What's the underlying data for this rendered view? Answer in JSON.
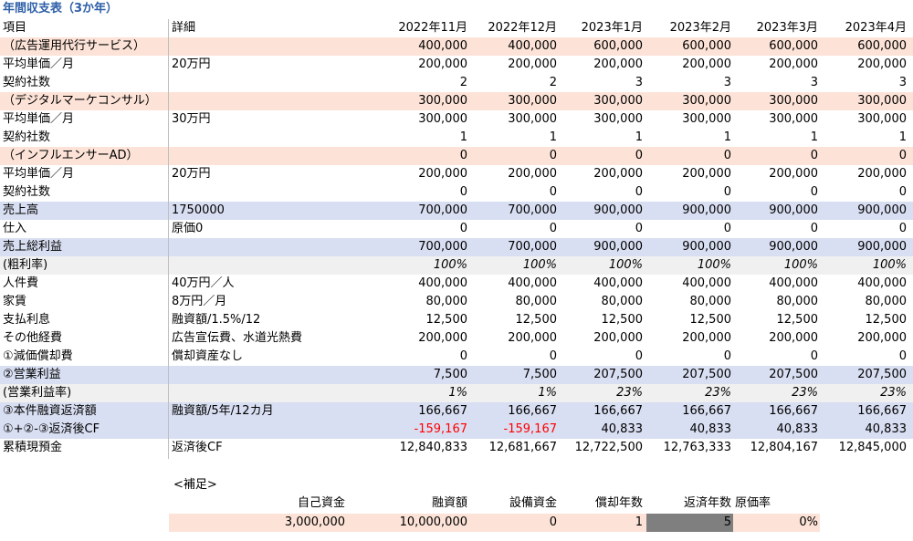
{
  "title": "年間収支表（3か年）",
  "header": {
    "label": "項目",
    "detail": "詳細",
    "months": [
      "2022年11月",
      "2022年12月",
      "2023年1月",
      "2023年2月",
      "2023年3月",
      "2023年4月"
    ]
  },
  "rows": [
    {
      "label": "（広告運用代行サービス）",
      "detail": "",
      "values": [
        "400,000",
        "400,000",
        "600,000",
        "600,000",
        "600,000",
        "600,000"
      ],
      "style": "pink"
    },
    {
      "label": "平均単価／月",
      "detail": "20万円",
      "values": [
        "200,000",
        "200,000",
        "200,000",
        "200,000",
        "200,000",
        "200,000"
      ],
      "style": ""
    },
    {
      "label": "契約社数",
      "detail": "",
      "values": [
        "2",
        "2",
        "3",
        "3",
        "3",
        "3"
      ],
      "style": ""
    },
    {
      "label": "（デジタルマーケコンサル）",
      "detail": "",
      "values": [
        "300,000",
        "300,000",
        "300,000",
        "300,000",
        "300,000",
        "300,000"
      ],
      "style": "pink"
    },
    {
      "label": "平均単価／月",
      "detail": "30万円",
      "values": [
        "300,000",
        "300,000",
        "300,000",
        "300,000",
        "300,000",
        "300,000"
      ],
      "style": ""
    },
    {
      "label": "契約社数",
      "detail": "",
      "values": [
        "1",
        "1",
        "1",
        "1",
        "1",
        "1"
      ],
      "style": ""
    },
    {
      "label": "（インフルエンサーAD）",
      "detail": "",
      "values": [
        "0",
        "0",
        "0",
        "0",
        "0",
        "0"
      ],
      "style": "pink"
    },
    {
      "label": "平均単価／月",
      "detail": "20万円",
      "values": [
        "200,000",
        "200,000",
        "200,000",
        "200,000",
        "200,000",
        "200,000"
      ],
      "style": ""
    },
    {
      "label": "契約社数",
      "detail": "",
      "values": [
        "0",
        "0",
        "0",
        "0",
        "0",
        "0"
      ],
      "style": ""
    },
    {
      "label": "売上高",
      "detail": "1750000",
      "values": [
        "700,000",
        "700,000",
        "900,000",
        "900,000",
        "900,000",
        "900,000"
      ],
      "style": "blue"
    },
    {
      "label": "仕入",
      "detail": "原価0",
      "values": [
        "0",
        "0",
        "0",
        "0",
        "0",
        "0"
      ],
      "style": ""
    },
    {
      "label": "売上総利益",
      "detail": "",
      "values": [
        "700,000",
        "700,000",
        "900,000",
        "900,000",
        "900,000",
        "900,000"
      ],
      "style": "blue"
    },
    {
      "label": "(粗利率)",
      "detail": "",
      "values": [
        "100%",
        "100%",
        "100%",
        "100%",
        "100%",
        "100%"
      ],
      "style": "gray",
      "italic": true
    },
    {
      "label": "人件費",
      "detail": "40万円／人",
      "values": [
        "400,000",
        "400,000",
        "400,000",
        "400,000",
        "400,000",
        "400,000"
      ],
      "style": ""
    },
    {
      "label": "家賃",
      "detail": "8万円／月",
      "values": [
        "80,000",
        "80,000",
        "80,000",
        "80,000",
        "80,000",
        "80,000"
      ],
      "style": ""
    },
    {
      "label": "支払利息",
      "detail": "融資額/1.5%/12",
      "values": [
        "12,500",
        "12,500",
        "12,500",
        "12,500",
        "12,500",
        "12,500"
      ],
      "style": ""
    },
    {
      "label": "その他経費",
      "detail": "広告宣伝費、水道光熱費",
      "values": [
        "200,000",
        "200,000",
        "200,000",
        "200,000",
        "200,000",
        "200,000"
      ],
      "style": ""
    },
    {
      "label": "①減価償却費",
      "detail": "償却資産なし",
      "values": [
        "0",
        "0",
        "0",
        "0",
        "0",
        "0"
      ],
      "style": ""
    },
    {
      "label": "②営業利益",
      "detail": "",
      "values": [
        "7,500",
        "7,500",
        "207,500",
        "207,500",
        "207,500",
        "207,500"
      ],
      "style": "blue"
    },
    {
      "label": "(営業利益率)",
      "detail": "",
      "values": [
        "1%",
        "1%",
        "23%",
        "23%",
        "23%",
        "23%"
      ],
      "style": "gray",
      "italic": true
    },
    {
      "label": "③本件融資返済額",
      "detail": "融資額/5年/12カ月",
      "values": [
        "166,667",
        "166,667",
        "166,667",
        "166,667",
        "166,667",
        "166,667"
      ],
      "style": "blue"
    },
    {
      "label": "①+②-③返済後CF",
      "detail": "",
      "values": [
        "-159,167",
        "-159,167",
        "40,833",
        "40,833",
        "40,833",
        "40,833"
      ],
      "style": "blue",
      "negcols": [
        0,
        1
      ]
    },
    {
      "label": "累積現預金",
      "detail": "返済後CF",
      "values": [
        "12,840,833",
        "12,681,667",
        "12,722,500",
        "12,763,333",
        "12,804,167",
        "12,845,000"
      ],
      "style": ""
    }
  ],
  "supplement": {
    "label": "<補足>",
    "headers": [
      "自己資金",
      "融資額",
      "設備資金",
      "償却年数",
      "返済年数",
      "原価率"
    ],
    "values": [
      "3,000,000",
      "10,000,000",
      "0",
      "1",
      "5",
      "0%"
    ]
  }
}
